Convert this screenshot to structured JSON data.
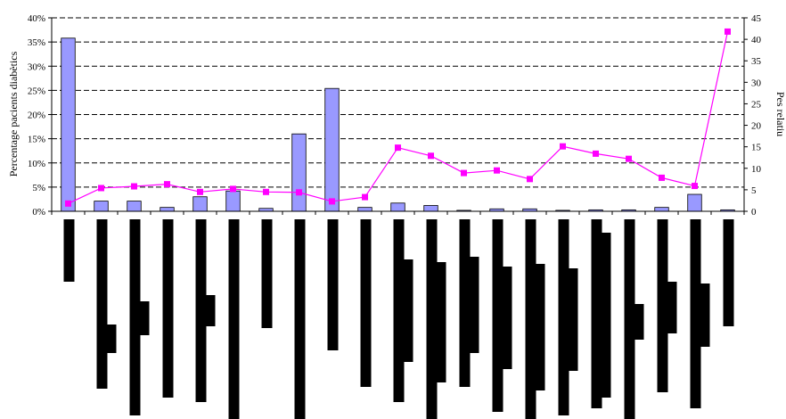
{
  "chart_data": {
    "type": "bar",
    "title": "",
    "xlabel": "",
    "ylabel": "Percentage pacients diabètics",
    "y2label": "Pes relatiu",
    "ylim": [
      0,
      0.4
    ],
    "y2lim": [
      0,
      45
    ],
    "yticks": [
      "0%",
      "5%",
      "10%",
      "15%",
      "20%",
      "25%",
      "30%",
      "35%",
      "40%"
    ],
    "y2ticks": [
      "0",
      "5",
      "10",
      "15",
      "20",
      "25",
      "30",
      "35",
      "40",
      "45"
    ],
    "grid": true,
    "legend": "none",
    "categories_obscured": true,
    "colors": {
      "bar_fill": "#9999ff",
      "bar_stroke": "#000000",
      "line": "#ff00ff",
      "grid": "#000000"
    },
    "series": [
      {
        "type": "bar",
        "axis": "left",
        "values": [
          0.358,
          0.021,
          0.021,
          0.008,
          0.03,
          0.042,
          0.006,
          0.16,
          0.254,
          0.008,
          0.017,
          0.012,
          0.002,
          0.005,
          0.005,
          0.002,
          0.003,
          0.003,
          0.008,
          0.035,
          0.003
        ]
      },
      {
        "type": "line",
        "axis": "right",
        "values": [
          1.8,
          5.4,
          5.8,
          6.3,
          4.5,
          5.2,
          4.5,
          4.4,
          2.3,
          3.3,
          14.8,
          12.9,
          8.9,
          9.5,
          7.5,
          15.1,
          13.4,
          12.2,
          7.8,
          5.9,
          41.8
        ]
      }
    ]
  }
}
